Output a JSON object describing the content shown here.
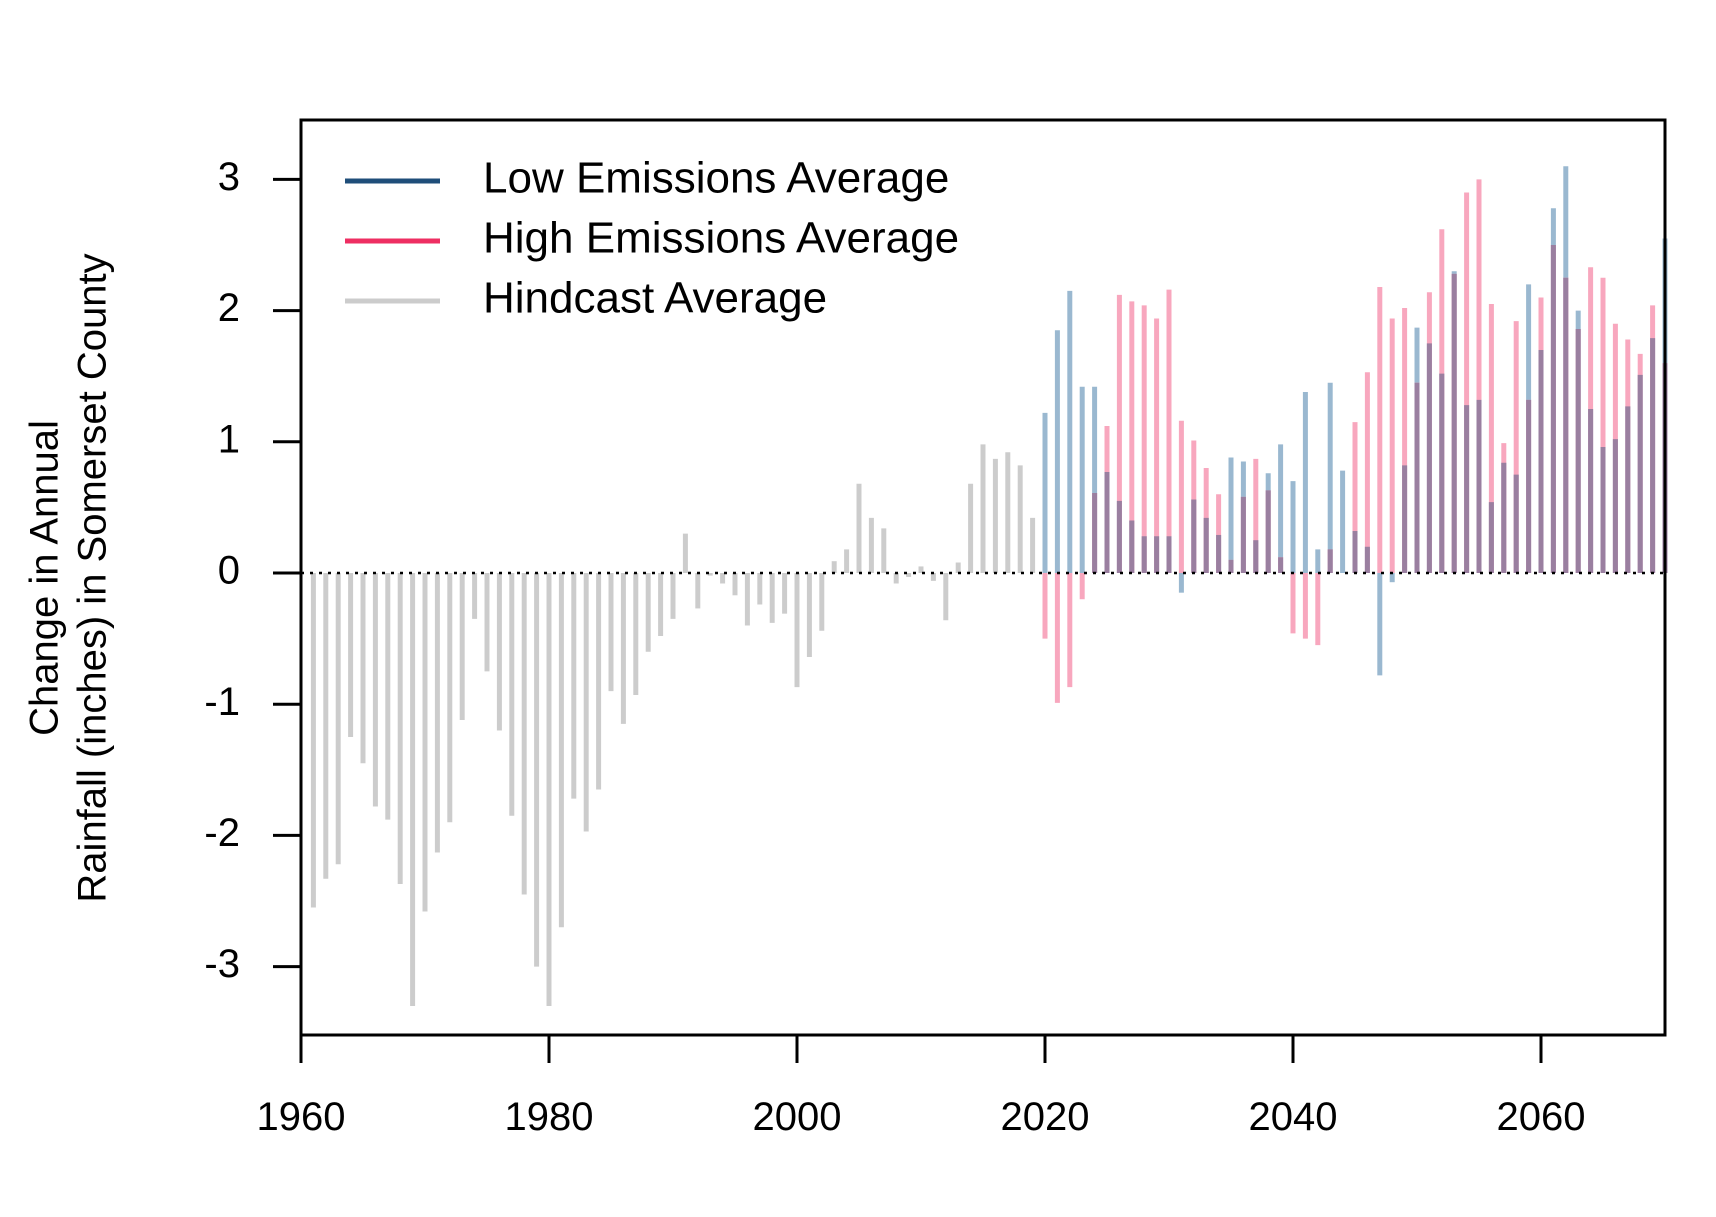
{
  "chart_data": {
    "type": "bar",
    "title": "",
    "xlabel": "",
    "ylabel_lines": [
      "Change in Annual",
      "Rainfall (inches) in Somerset County"
    ],
    "xlim": [
      1960,
      2070
    ],
    "ylim": [
      -3.5,
      3.5
    ],
    "x_ticks": [
      1960,
      1980,
      2000,
      2020,
      2040,
      2060
    ],
    "y_ticks": [
      -3,
      -2,
      -1,
      0,
      1,
      2,
      3
    ],
    "grid": false,
    "reference_line": {
      "y": 0,
      "style": "dotted"
    },
    "legend_position": "top-left",
    "series": [
      {
        "name": "Hindcast Average",
        "color": "#cccccc",
        "years": [
          1961,
          1962,
          1963,
          1964,
          1965,
          1966,
          1967,
          1968,
          1969,
          1970,
          1971,
          1972,
          1973,
          1974,
          1975,
          1976,
          1977,
          1978,
          1979,
          1980,
          1981,
          1982,
          1983,
          1984,
          1985,
          1986,
          1987,
          1988,
          1989,
          1990,
          1991,
          1992,
          1993,
          1994,
          1995,
          1996,
          1997,
          1998,
          1999,
          2000,
          2001,
          2002,
          2003,
          2004,
          2005,
          2006,
          2007,
          2008,
          2009,
          2010,
          2011,
          2012,
          2013,
          2014,
          2015,
          2016,
          2017,
          2018,
          2019
        ],
        "values": [
          -2.55,
          -2.33,
          -2.22,
          -1.25,
          -1.45,
          -1.78,
          -1.88,
          -2.37,
          -3.3,
          -2.58,
          -2.13,
          -1.9,
          -1.12,
          -0.35,
          -0.75,
          -1.2,
          -1.85,
          -2.45,
          -3.0,
          -3.3,
          -2.7,
          -1.72,
          -1.97,
          -1.65,
          -0.9,
          -1.15,
          -0.93,
          -0.6,
          -0.48,
          -0.35,
          0.3,
          -0.27,
          -0.02,
          -0.08,
          -0.17,
          -0.4,
          -0.24,
          -0.38,
          -0.31,
          -0.87,
          -0.64,
          -0.44,
          0.09,
          0.18,
          0.68,
          0.42,
          0.34,
          -0.08,
          -0.03,
          0.05,
          -0.06,
          -0.36,
          0.08,
          0.68,
          0.98,
          0.87,
          0.92,
          0.82,
          0.42
        ]
      },
      {
        "name": "Low Emissions Average",
        "color": "#9ab8d0",
        "years": [
          2020,
          2021,
          2022,
          2023,
          2024,
          2025,
          2026,
          2027,
          2028,
          2029,
          2030,
          2031,
          2032,
          2033,
          2034,
          2035,
          2036,
          2037,
          2038,
          2039,
          2040,
          2041,
          2042,
          2043,
          2044,
          2045,
          2046,
          2047,
          2048,
          2049,
          2050,
          2051,
          2052,
          2053,
          2054,
          2055,
          2056,
          2057,
          2058,
          2059,
          2060,
          2061,
          2062,
          2063,
          2064,
          2065,
          2066,
          2067,
          2068,
          2069,
          2070
        ],
        "values": [
          1.22,
          1.85,
          2.15,
          1.42,
          1.42,
          0.77,
          0.55,
          0.4,
          0.28,
          0.28,
          0.28,
          -0.15,
          0.56,
          0.42,
          0.29,
          0.88,
          0.85,
          0.25,
          0.76,
          0.98,
          0.7,
          1.38,
          0.18,
          1.45,
          0.78,
          0.32,
          0.2,
          -0.78,
          -0.07,
          0.82,
          1.87,
          1.75,
          1.52,
          2.3,
          1.28,
          1.32,
          0.54,
          0.84,
          0.75,
          2.2,
          1.7,
          2.78,
          3.1,
          2.0,
          1.25,
          0.96,
          1.02,
          1.27,
          1.51,
          1.79,
          2.55
        ]
      },
      {
        "name": "High Emissions Average",
        "color": "#f8a7be",
        "years": [
          2020,
          2021,
          2022,
          2023,
          2024,
          2025,
          2026,
          2027,
          2028,
          2029,
          2030,
          2031,
          2032,
          2033,
          2034,
          2035,
          2036,
          2037,
          2038,
          2039,
          2040,
          2041,
          2042,
          2043,
          2044,
          2045,
          2046,
          2047,
          2048,
          2049,
          2050,
          2051,
          2052,
          2053,
          2054,
          2055,
          2056,
          2057,
          2058,
          2059,
          2060,
          2061,
          2062,
          2063,
          2064,
          2065,
          2066,
          2067,
          2068,
          2069,
          2070
        ],
        "values": [
          -0.5,
          -0.99,
          -0.87,
          -0.2,
          0.61,
          1.12,
          2.12,
          2.07,
          2.04,
          1.94,
          2.16,
          1.16,
          1.01,
          0.8,
          0.6,
          0.1,
          0.58,
          0.87,
          0.63,
          0.12,
          -0.46,
          -0.5,
          -0.55,
          0.18,
          0.0,
          1.15,
          1.53,
          2.18,
          1.94,
          2.02,
          1.45,
          2.14,
          2.62,
          2.28,
          2.9,
          3.0,
          2.05,
          0.99,
          1.92,
          1.32,
          2.1,
          2.5,
          2.25,
          1.86,
          2.33,
          2.25,
          1.9,
          1.78,
          1.67,
          2.04,
          1.6
        ]
      }
    ],
    "legend": [
      {
        "label": "Low Emissions Average",
        "color": "#1f4e79"
      },
      {
        "label": "High Emissions Average",
        "color": "#ee2e62"
      },
      {
        "label": "Hindcast Average",
        "color": "#cccccc"
      }
    ],
    "overlap_color": "#9a7fa0"
  }
}
